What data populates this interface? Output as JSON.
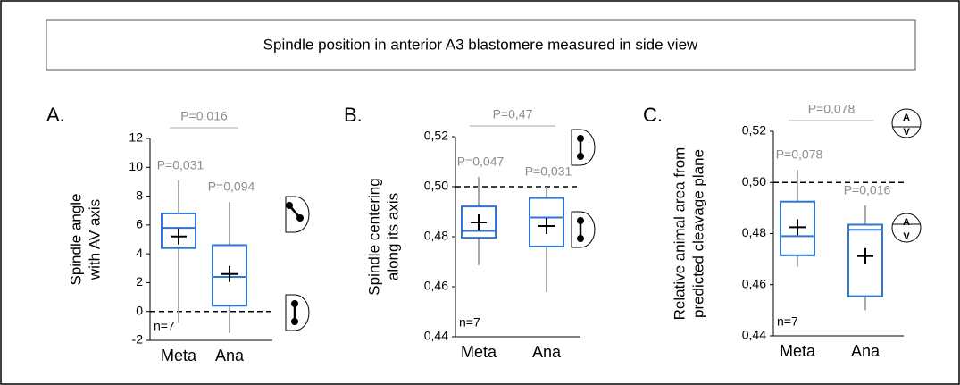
{
  "title": "Spindle position in anterior A3 blastomere measured in side view",
  "chart_data": [
    {
      "type": "box",
      "label": "A.",
      "ylabel": [
        "Spindle angle",
        "with AV axis"
      ],
      "categories": [
        "Meta",
        "Ana"
      ],
      "color": "#2e75d6",
      "stats": {
        "whisker_low": [
          -0.8,
          -1.5
        ],
        "q1": [
          4.4,
          0.4
        ],
        "median": [
          5.8,
          2.4
        ],
        "q3": [
          6.8,
          4.6
        ],
        "whisker_high": [
          9.1,
          7.6
        ],
        "mean": [
          5.2,
          2.6
        ]
      },
      "p_labels": [
        "P=0,031",
        "P=0,094"
      ],
      "bracket_label": "P=0,016",
      "reference_line": 0,
      "annotation": "n=7",
      "ylim": [
        -2,
        12
      ],
      "yticks": [
        -2,
        0,
        2,
        4,
        6,
        8,
        10,
        12
      ]
    },
    {
      "type": "box",
      "label": "B.",
      "ylabel": [
        "Spindle centering",
        "along its axis"
      ],
      "categories": [
        "Meta",
        "Ana"
      ],
      "color": "#2e75d6",
      "stats": {
        "whisker_low": [
          0.4686,
          0.4578
        ],
        "q1": [
          0.4796,
          0.4761
        ],
        "median": [
          0.4823,
          0.4877
        ],
        "q3": [
          0.4921,
          0.4955
        ],
        "whisker_high": [
          0.504,
          0.5
        ],
        "mean": [
          0.4857,
          0.4843
        ]
      },
      "p_labels": [
        "P=0,047",
        "P=0,031"
      ],
      "bracket_label": "P=0,47",
      "reference_line": 0.5,
      "annotation": "n=7",
      "ylim": [
        0.44,
        0.52
      ],
      "yticks": [
        {
          "value": 0.44,
          "label": "0,44"
        },
        {
          "value": 0.46,
          "label": "0,46"
        },
        {
          "value": 0.48,
          "label": "0,48"
        },
        {
          "value": 0.5,
          "label": "0,50"
        },
        {
          "value": 0.52,
          "label": "0,52"
        }
      ]
    },
    {
      "type": "box",
      "label": "C.",
      "ylabel": [
        "Relative animal area from",
        "predicted cleavage plane"
      ],
      "categories": [
        "Meta",
        "Ana"
      ],
      "color": "#2e75d6",
      "stats": {
        "whisker_low": [
          0.467,
          0.45
        ],
        "q1": [
          0.4715,
          0.4555
        ],
        "median": [
          0.479,
          0.4815
        ],
        "q3": [
          0.4925,
          0.4835
        ],
        "whisker_high": [
          0.505,
          0.491
        ],
        "mean": [
          0.4825,
          0.4712
        ]
      },
      "p_labels": [
        "P=0,078",
        "P=0,016"
      ],
      "bracket_label": "P=0,078",
      "reference_line": 0.5,
      "annotation": "n=7",
      "icon_labels": [
        "A",
        "V"
      ],
      "ylim": [
        0.44,
        0.52
      ],
      "yticks": [
        {
          "value": 0.44,
          "label": "0,44"
        },
        {
          "value": 0.46,
          "label": "0,46"
        },
        {
          "value": 0.48,
          "label": "0,48"
        },
        {
          "value": 0.5,
          "label": "0,50"
        },
        {
          "value": 0.52,
          "label": "0,52"
        }
      ]
    }
  ]
}
